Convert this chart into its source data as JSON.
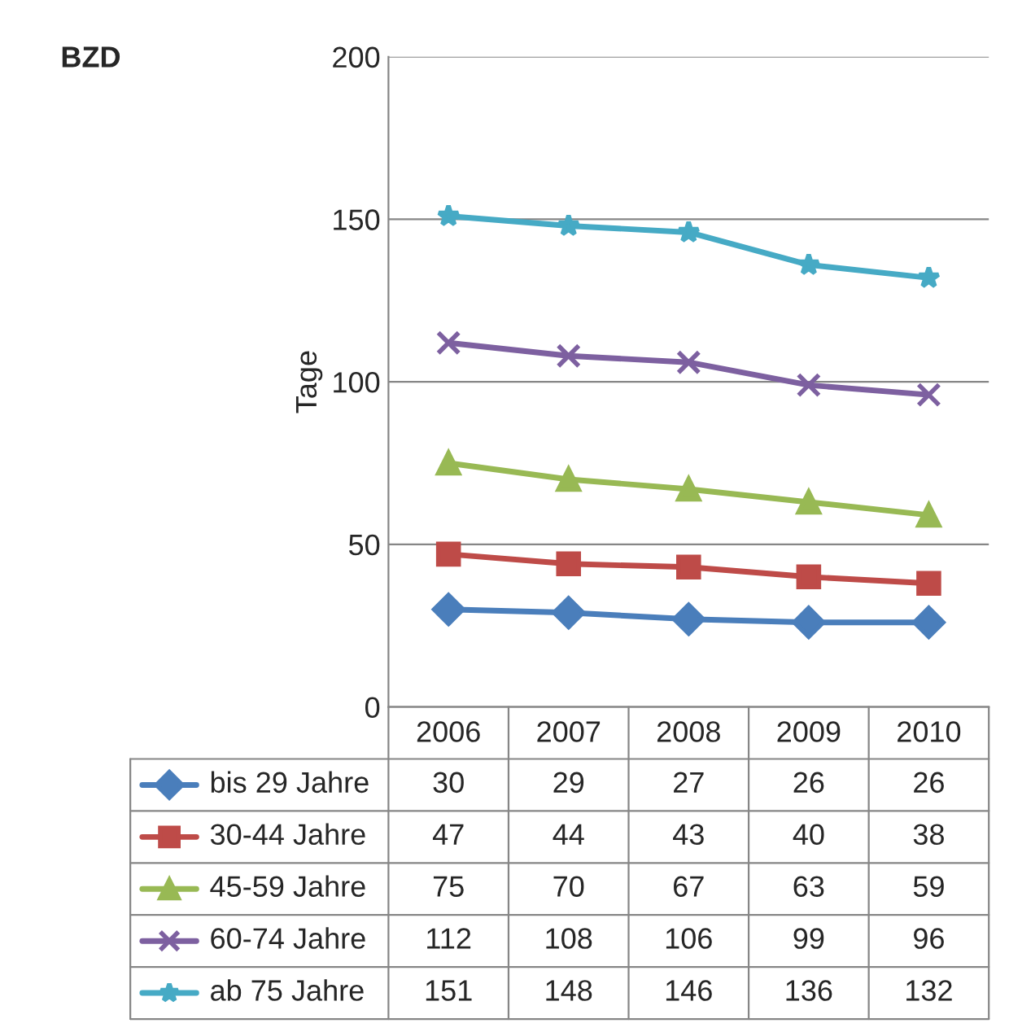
{
  "chart_data": {
    "type": "line",
    "title": "BZD",
    "ylabel": "Tage",
    "categories": [
      "2006",
      "2007",
      "2008",
      "2009",
      "2010"
    ],
    "series": [
      {
        "name": "bis 29 Jahre",
        "color": "#4a7ebb",
        "marker": "diamond",
        "values": [
          30,
          29,
          27,
          26,
          26
        ]
      },
      {
        "name": "30-44 Jahre",
        "color": "#be4b48",
        "marker": "square",
        "values": [
          47,
          44,
          43,
          40,
          38
        ]
      },
      {
        "name": "45-59 Jahre",
        "color": "#98b954",
        "marker": "triangle",
        "values": [
          75,
          70,
          67,
          63,
          59
        ]
      },
      {
        "name": "60-74 Jahre",
        "color": "#7d60a0",
        "marker": "cross",
        "values": [
          112,
          108,
          106,
          99,
          96
        ]
      },
      {
        "name": "ab 75 Jahre",
        "color": "#46aac5",
        "marker": "star",
        "values": [
          151,
          148,
          146,
          136,
          132
        ]
      }
    ],
    "ylim": [
      0,
      200
    ],
    "yticks": [
      0,
      50,
      100,
      150,
      200
    ],
    "grid": "y",
    "legend": "bottom",
    "data_labels": true,
    "line_style": "solid"
  }
}
